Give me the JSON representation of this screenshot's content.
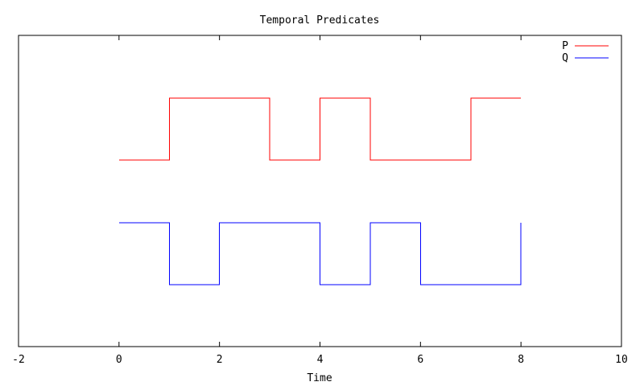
{
  "chart_data": {
    "type": "line",
    "step": true,
    "title": "Temporal Predicates",
    "xlabel": "Time",
    "ylabel": "",
    "xlim": [
      -2,
      10
    ],
    "xticks": [
      "-2",
      "0",
      "2",
      "4",
      "6",
      "8",
      "10"
    ],
    "y_tick_labels_shown": false,
    "grid": false,
    "legend_position": "top-right",
    "series": [
      {
        "name": "P",
        "color": "#ff0000",
        "points": [
          [
            0,
            0
          ],
          [
            1,
            1
          ],
          [
            3,
            0
          ],
          [
            4,
            1
          ],
          [
            5,
            0
          ],
          [
            7,
            1
          ],
          [
            8,
            1
          ]
        ]
      },
      {
        "name": "Q",
        "color": "#0000ff",
        "points": [
          [
            0,
            1
          ],
          [
            1,
            0
          ],
          [
            2,
            1
          ],
          [
            4,
            0
          ],
          [
            5,
            1
          ],
          [
            6,
            0
          ],
          [
            8,
            0
          ],
          [
            8,
            1
          ]
        ]
      }
    ]
  }
}
